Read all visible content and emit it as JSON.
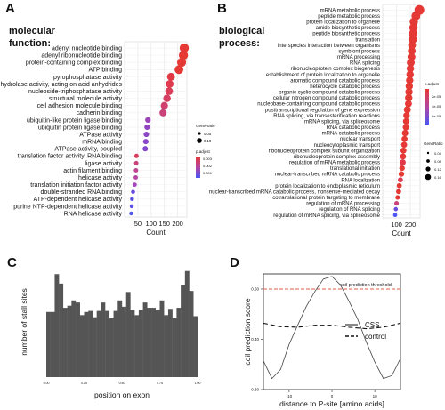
{
  "panels": {
    "A": {
      "letter": "A",
      "title_line1": "molecular",
      "title_line2": "function:"
    },
    "B": {
      "letter": "B",
      "title_line1": "biological",
      "title_line2": "process:"
    },
    "C": {
      "letter": "C"
    },
    "D": {
      "letter": "D"
    }
  },
  "chart_data": [
    {
      "panel": "A",
      "type": "scatter",
      "xlabel": "Count",
      "xticks": [
        50,
        100,
        150,
        200
      ],
      "xlim": [
        0,
        235
      ],
      "categories": [
        "adenyl nucleotide binding",
        "adenyl ribonucleotide binding",
        "protein-containing complex binding",
        "ATP binding",
        "pyrophosphatase activity",
        "hydrolase activity, acting on acid anhydrides",
        "nucleoside-triphosphatase activity",
        "structural molecule activity",
        "cell adhesion molecule binding",
        "cadherin binding",
        "ubiquitin-like protein ligase binding",
        "ubiquitin protein ligase binding",
        "ATPase activity",
        "mRNA binding",
        "ATPase activity, coupled",
        "translation factor activity, RNA binding",
        "ligase activity",
        "actin filament binding",
        "helicase activity",
        "translation initiation factor activity",
        "double-stranded RNA binding",
        "ATP-dependent helicase activity",
        "purine NTP-dependent helicase activity",
        "RNA helicase activity"
      ],
      "values": [
        225,
        222,
        215,
        205,
        175,
        170,
        168,
        160,
        150,
        145,
        88,
        85,
        82,
        80,
        78,
        45,
        44,
        43,
        42,
        38,
        32,
        28,
        27,
        25
      ],
      "gene_ratio": [
        0.095,
        0.094,
        0.091,
        0.087,
        0.074,
        0.072,
        0.071,
        0.068,
        0.064,
        0.062,
        0.038,
        0.037,
        0.036,
        0.035,
        0.034,
        0.02,
        0.019,
        0.019,
        0.019,
        0.017,
        0.014,
        0.012,
        0.012,
        0.011
      ],
      "p_adjust_color": [
        "#e53935",
        "#e53935",
        "#e53935",
        "#e53935",
        "#e23a45",
        "#de3b4e",
        "#da3d58",
        "#d63e62",
        "#cf406c",
        "#c94378",
        "#9a46b9",
        "#8f46c0",
        "#8c47c4",
        "#8a48c8",
        "#8349cd",
        "#d53f5d",
        "#c8437a",
        "#bf4590",
        "#b646a3",
        "#a347ba",
        "#6a4de0",
        "#5a50e8",
        "#5b4ee4",
        "#4f53f0"
      ],
      "legend": {
        "generatio_title": "GeneRatio",
        "generatio_items": [
          "0.05",
          "0.10"
        ],
        "padj_title": "p.adjust",
        "padj_ticks": [
          "0.003",
          "0.002",
          "0.001"
        ]
      }
    },
    {
      "panel": "B",
      "type": "scatter",
      "xlabel": "Count",
      "xticks": [
        100,
        200
      ],
      "xlim": [
        0,
        270
      ],
      "categories": [
        "mRNA metabolic process",
        "peptide metabolic process",
        "protein localization to organelle",
        "amide biosynthetic process",
        "peptide biosynthetic process",
        "translation",
        "interspecies interaction between organisms",
        "symbiont process",
        "mRNA processing",
        "RNA splicing",
        "ribonucleoprotein complex biogenesis",
        "establishment of protein localization to organelle",
        "aromatic compound catabolic process",
        "heterocycle catabolic process",
        "organic cyclic compound catabolic process",
        "cellular nitrogen compound catabolic process",
        "nucleobase-containing compound catabolic process",
        "posttranscriptional regulation of gene expression",
        "RNA splicing, via transesterification reactions",
        "mRNA splicing, via spliceosome",
        "RNA catabolic process",
        "mRNA catabolic process",
        "nuclear transport",
        "nucleocytoplasmic transport",
        "ribonucleoprotein complex subunit organization",
        "ribonucleoprotein complex assembly",
        "regulation of mRNA metabolic process",
        "translational initiation",
        "nuclear-transcribed mRNA catabolic process",
        "RNA localization",
        "protein localization to endoplasmic reticulum",
        "nuclear-transcribed mRNA catabolic process, nonsense-mediated decay",
        "cotranslational protein targeting to membrane",
        "regulation of mRNA processing",
        "regulation of RNA splicing",
        "regulation of mRNA splicing, via spliceosome"
      ],
      "values": [
        265,
        240,
        225,
        222,
        220,
        218,
        212,
        210,
        208,
        203,
        200,
        198,
        195,
        192,
        190,
        188,
        186,
        178,
        172,
        170,
        168,
        162,
        158,
        155,
        150,
        147,
        145,
        140,
        135,
        128,
        120,
        115,
        108,
        100,
        95,
        90
      ],
      "gene_ratio": [
        0.18,
        0.16,
        0.15,
        0.15,
        0.15,
        0.15,
        0.14,
        0.14,
        0.14,
        0.14,
        0.13,
        0.13,
        0.13,
        0.13,
        0.13,
        0.13,
        0.12,
        0.12,
        0.11,
        0.11,
        0.11,
        0.11,
        0.1,
        0.1,
        0.1,
        0.1,
        0.1,
        0.09,
        0.09,
        0.08,
        0.08,
        0.08,
        0.07,
        0.07,
        0.06,
        0.06
      ],
      "p_adjust_color": [
        "#e53935",
        "#e53935",
        "#e53935",
        "#e53935",
        "#e53935",
        "#e53935",
        "#e53935",
        "#e53935",
        "#e53935",
        "#e53935",
        "#e53935",
        "#e53935",
        "#e53935",
        "#e53935",
        "#e53935",
        "#e53935",
        "#e53935",
        "#e53935",
        "#e53935",
        "#e53935",
        "#e53935",
        "#e53935",
        "#e53935",
        "#e53935",
        "#e53935",
        "#e53935",
        "#e2394a",
        "#e53935",
        "#e53935",
        "#dd3b52",
        "#e53935",
        "#e53935",
        "#e53935",
        "#c9437a",
        "#6a4de0",
        "#4f53f0"
      ],
      "legend": {
        "padj_title": "p.adjust",
        "padj_ticks": [
          "2e-05",
          "4e-05",
          "6e-05"
        ],
        "generatio_title": "GeneRatio",
        "generatio_items": [
          "0.04",
          "0.08",
          "0.12",
          "0.16"
        ]
      }
    },
    {
      "panel": "C",
      "type": "bar",
      "xlabel": "position on exon",
      "ylabel": "number of stall sites",
      "values": [
        62,
        62,
        98,
        89,
        66,
        68,
        73,
        71,
        59,
        62,
        63,
        57,
        63,
        71,
        63,
        56,
        63,
        73,
        67,
        81,
        64,
        59,
        64,
        71,
        66,
        66,
        64,
        73,
        59,
        65,
        56,
        66,
        88,
        101,
        82,
        58
      ],
      "ylim": [
        0,
        105
      ],
      "xtick_labels": [
        "0.00",
        "0.25",
        "0.50",
        "0.75",
        "1.00"
      ]
    },
    {
      "panel": "D",
      "type": "line",
      "xlabel": "distance to P-site [amino acids]",
      "ylabel": "coil prediction score",
      "xlim": [
        -16,
        16
      ],
      "ylim": [
        0.3,
        0.53
      ],
      "xticks": [
        -10,
        0,
        10
      ],
      "yticks": [
        0.3,
        0.4,
        0.5
      ],
      "series": [
        {
          "name": "CSS",
          "style": "solid",
          "x": [
            -16,
            -14,
            -12,
            -10,
            -8,
            -6,
            -4,
            -2,
            0,
            2,
            4,
            6,
            8,
            10,
            12,
            14,
            16
          ],
          "y": [
            0.357,
            0.322,
            0.34,
            0.39,
            0.428,
            0.465,
            0.495,
            0.52,
            0.525,
            0.508,
            0.475,
            0.44,
            0.395,
            0.355,
            0.322,
            0.328,
            0.362
          ]
        },
        {
          "name": "control",
          "style": "dashed",
          "x": [
            -16,
            -12,
            -8,
            -4,
            0,
            4,
            8,
            12,
            16
          ],
          "y": [
            0.432,
            0.425,
            0.424,
            0.428,
            0.428,
            0.424,
            0.421,
            0.424,
            0.432
          ]
        }
      ],
      "threshold": {
        "label": "coil prediction threshold",
        "y": 0.5,
        "color": "#e05b4b"
      }
    }
  ]
}
